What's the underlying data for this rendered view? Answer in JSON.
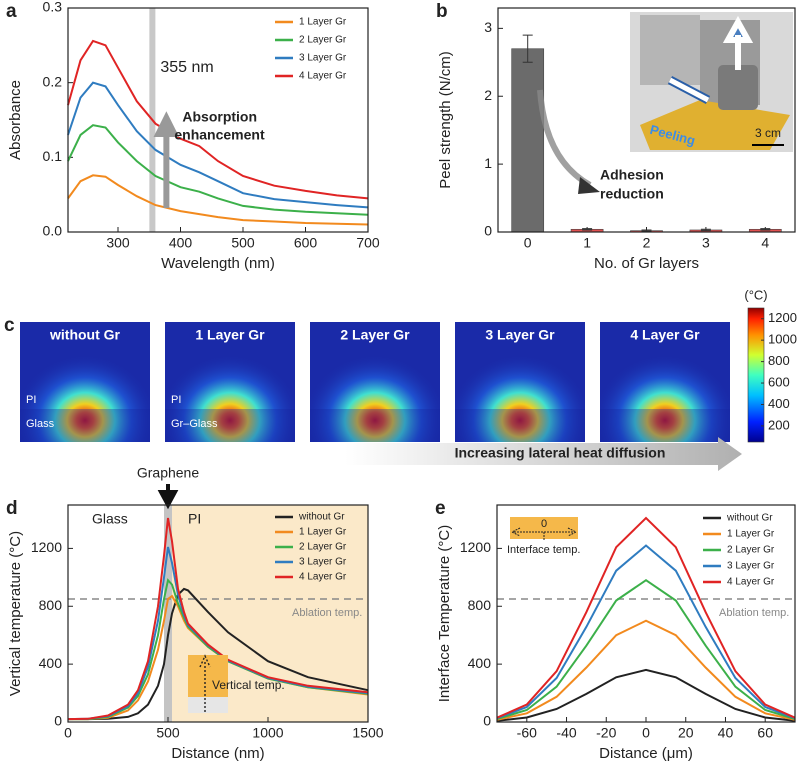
{
  "chart_data": [
    {
      "type": "line",
      "panel_label": "a",
      "xlabel": "Wavelength (nm)",
      "ylabel": "Absorbance",
      "x": [
        220,
        240,
        260,
        280,
        300,
        330,
        360,
        400,
        430,
        460,
        500,
        550,
        600,
        650,
        700
      ],
      "xlim": [
        220,
        700
      ],
      "xticks": [
        300,
        400,
        500,
        600,
        700
      ],
      "ylim": [
        0,
        0.3
      ],
      "yticks": [
        {
          "value": 0,
          "label": "0.0"
        },
        0.1,
        0.2,
        0.3
      ],
      "series": [
        {
          "name": "1 Layer Gr",
          "color": "#f28a1e",
          "values": [
            0.045,
            0.068,
            0.076,
            0.074,
            0.063,
            0.048,
            0.036,
            0.028,
            0.024,
            0.02,
            0.016,
            0.014,
            0.012,
            0.011,
            0.01
          ]
        },
        {
          "name": "2 Layer Gr",
          "color": "#3cb04a",
          "values": [
            0.095,
            0.13,
            0.143,
            0.14,
            0.12,
            0.095,
            0.075,
            0.06,
            0.054,
            0.045,
            0.035,
            0.03,
            0.027,
            0.025,
            0.023
          ]
        },
        {
          "name": "3 Layer Gr",
          "color": "#2f7cc0",
          "values": [
            0.13,
            0.18,
            0.2,
            0.195,
            0.17,
            0.135,
            0.11,
            0.09,
            0.08,
            0.068,
            0.052,
            0.044,
            0.04,
            0.036,
            0.033
          ]
        },
        {
          "name": "4 Layer Gr",
          "color": "#e02424",
          "values": [
            0.17,
            0.23,
            0.256,
            0.25,
            0.22,
            0.175,
            0.145,
            0.125,
            0.115,
            0.095,
            0.075,
            0.062,
            0.055,
            0.049,
            0.045
          ]
        }
      ],
      "marker_x": 355,
      "annotations": [
        "355 nm",
        "Absorption",
        "enhancement"
      ],
      "legend": "upper right"
    },
    {
      "type": "bar",
      "panel_label": "b",
      "xlabel": "No. of Gr layers",
      "ylabel": "Peel strength (N/cm)",
      "categories": [
        "0",
        "1",
        "2",
        "3",
        "4"
      ],
      "values": [
        2.7,
        0.04,
        0.02,
        0.03,
        0.04
      ],
      "errors": [
        0.2,
        0.01,
        0.01,
        0.01,
        0.01
      ],
      "colors": [
        "#6b6b6b",
        "#e05050",
        "#e05050",
        "#e05050",
        "#e05050"
      ],
      "ylim": [
        0,
        3.3
      ],
      "yticks": [
        0,
        1,
        2,
        3
      ],
      "annotations": [
        "Adhesion",
        "reduction"
      ],
      "inset_labels": [
        "Peeling",
        "3 cm"
      ]
    },
    {
      "type": "heatmap",
      "panel_label": "c",
      "panels": [
        "without Gr",
        "1 Layer Gr",
        "2 Layer Gr",
        "3 Layer Gr",
        "4 Layer Gr"
      ],
      "layer_labels": [
        "PI",
        "Glass",
        "PI",
        "Gr–Glass"
      ],
      "colorbar_label": "(°C)",
      "clim": [
        50,
        1300
      ],
      "cticks": [
        200,
        400,
        600,
        800,
        1000,
        1200
      ],
      "annotation": "Increasing lateral heat diffusion"
    },
    {
      "type": "line",
      "panel_label": "d",
      "xlabel": "Distance (nm)",
      "ylabel": "Vertical temperature (°C)",
      "x": [
        0,
        100,
        200,
        300,
        350,
        400,
        450,
        480,
        500,
        520,
        550,
        580,
        600,
        700,
        800,
        1000,
        1200,
        1500
      ],
      "xlim": [
        0,
        1500
      ],
      "xticks": [
        0,
        500,
        1000,
        1500
      ],
      "ylim": [
        0,
        1500
      ],
      "yticks": [
        0,
        400,
        800,
        1200
      ],
      "series": [
        {
          "name": "without Gr",
          "color": "#222222",
          "values": [
            20,
            20,
            22,
            35,
            60,
            120,
            250,
            400,
            600,
            750,
            880,
            920,
            910,
            760,
            620,
            420,
            310,
            220
          ]
        },
        {
          "name": "1 Layer Gr",
          "color": "#f28a1e",
          "values": [
            20,
            20,
            30,
            80,
            150,
            280,
            500,
            700,
            850,
            870,
            800,
            700,
            650,
            520,
            420,
            300,
            240,
            190
          ]
        },
        {
          "name": "2 Layer Gr",
          "color": "#3cb04a",
          "values": [
            20,
            20,
            35,
            100,
            180,
            330,
            600,
            850,
            980,
            950,
            820,
            720,
            660,
            520,
            420,
            300,
            240,
            195
          ]
        },
        {
          "name": "3 Layer Gr",
          "color": "#2f7cc0",
          "values": [
            20,
            22,
            40,
            110,
            200,
            380,
            700,
            1000,
            1210,
            1100,
            880,
            740,
            670,
            530,
            425,
            305,
            245,
            200
          ]
        },
        {
          "name": "4 Layer Gr",
          "color": "#e02424",
          "values": [
            20,
            22,
            45,
            120,
            220,
            420,
            800,
            1150,
            1410,
            1250,
            920,
            760,
            680,
            535,
            430,
            310,
            250,
            205
          ]
        }
      ],
      "hline": 850,
      "hline_label": "Ablation temp.",
      "interface_x": 500,
      "annotations": [
        "Glass",
        "PI",
        "Graphene",
        "Vertical temp."
      ],
      "legend": "upper right"
    },
    {
      "type": "line",
      "panel_label": "e",
      "xlabel": "Distance (μm)",
      "ylabel": "Interface Temperature (°C)",
      "x": [
        -75,
        -60,
        -45,
        -30,
        -15,
        0,
        15,
        30,
        45,
        60,
        75
      ],
      "xlim": [
        -75,
        75
      ],
      "xticks": [
        -60,
        -40,
        -20,
        0,
        20,
        40,
        60
      ],
      "ylim": [
        0,
        1500
      ],
      "yticks": [
        0,
        400,
        800,
        1200
      ],
      "series": [
        {
          "name": "without Gr",
          "color": "#222222",
          "values": [
            8,
            31,
            90,
            194,
            309,
            360,
            309,
            194,
            90,
            31,
            8
          ]
        },
        {
          "name": "1 Layer Gr",
          "color": "#f28a1e",
          "values": [
            15,
            60,
            174,
            377,
            600,
            700,
            600,
            377,
            174,
            60,
            15
          ]
        },
        {
          "name": "2 Layer Gr",
          "color": "#3cb04a",
          "values": [
            21,
            83,
            244,
            528,
            840,
            980,
            840,
            528,
            244,
            83,
            21
          ]
        },
        {
          "name": "3 Layer Gr",
          "color": "#2f7cc0",
          "values": [
            26,
            104,
            304,
            658,
            1046,
            1220,
            1046,
            658,
            304,
            104,
            26
          ]
        },
        {
          "name": "4 Layer Gr",
          "color": "#e02424",
          "values": [
            30,
            120,
            351,
            760,
            1208,
            1410,
            1208,
            760,
            351,
            120,
            30
          ]
        }
      ],
      "hline": 850,
      "hline_label": "Ablation temp.",
      "annotations": [
        "0",
        "Interface temp."
      ],
      "legend": "upper right"
    }
  ]
}
